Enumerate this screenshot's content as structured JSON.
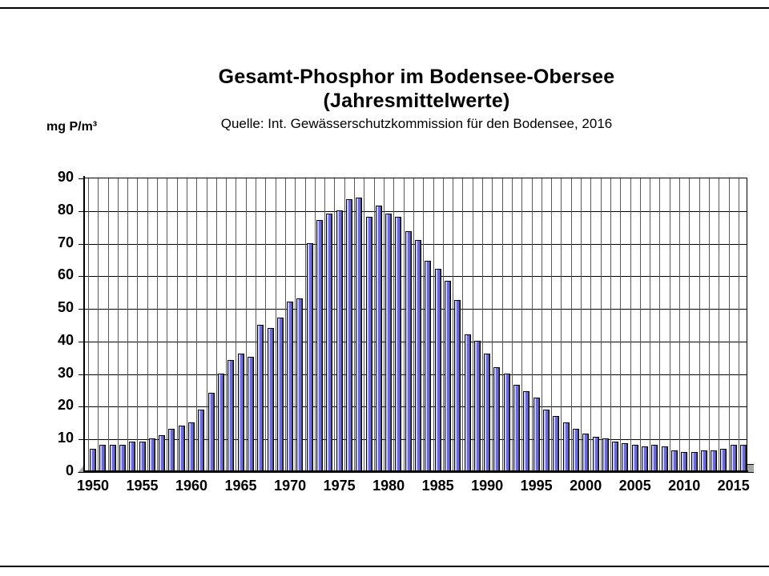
{
  "title": {
    "line1": "Gesamt-Phosphor im Bodensee-Obersee",
    "line2": "(Jahresmittelwerte)",
    "source": "Quelle: Int. Gewässerschutzkommission für den Bodensee, 2016"
  },
  "y_axis_unit": "mg P/m³",
  "colors": {
    "bar_fill": "#6b6bd6",
    "bar_highlight": "#e8e8ff",
    "bar_border": "#000000",
    "floor": "#a9a9a9",
    "grid": "#000000",
    "background": "#ffffff"
  },
  "chart_data": {
    "type": "bar",
    "title": "Gesamt-Phosphor im Bodensee-Obersee (Jahresmittelwerte)",
    "source": "Quelle: Int. Gewässerschutzkommission für den Bodensee, 2016",
    "ylabel": "mg P/m³",
    "xlabel": "",
    "ylim": [
      0,
      90
    ],
    "ytick_step": 10,
    "ytick_labels": [
      "0",
      "10",
      "20",
      "30",
      "40",
      "50",
      "60",
      "70",
      "80",
      "90"
    ],
    "xtick_labels": [
      "1950",
      "1955",
      "1960",
      "1965",
      "1970",
      "1975",
      "1980",
      "1985",
      "1990",
      "1995",
      "2000",
      "2005",
      "2010",
      "2015"
    ],
    "grid": true,
    "legend": "none",
    "year_start": 1950,
    "years": [
      1950,
      1951,
      1952,
      1953,
      1954,
      1955,
      1956,
      1957,
      1958,
      1959,
      1960,
      1961,
      1962,
      1963,
      1964,
      1965,
      1966,
      1967,
      1968,
      1969,
      1970,
      1971,
      1972,
      1973,
      1974,
      1975,
      1976,
      1977,
      1978,
      1979,
      1980,
      1981,
      1982,
      1983,
      1984,
      1985,
      1986,
      1987,
      1988,
      1989,
      1990,
      1991,
      1992,
      1993,
      1994,
      1995,
      1996,
      1997,
      1998,
      1999,
      2000,
      2001,
      2002,
      2003,
      2004,
      2005,
      2006,
      2007,
      2008,
      2009,
      2010,
      2011,
      2012,
      2013,
      2014,
      2015,
      2016
    ],
    "values": [
      7,
      8,
      8,
      8,
      9,
      9,
      10,
      11,
      13,
      14,
      15,
      19,
      24,
      30,
      34,
      36,
      35,
      45,
      44,
      47,
      52,
      53,
      70,
      77,
      79,
      80,
      83.5,
      84,
      78,
      81.5,
      79,
      78,
      73.5,
      71,
      64.5,
      62,
      58.5,
      52.5,
      42,
      40,
      36,
      32,
      30,
      26.5,
      24.5,
      22.5,
      19,
      17,
      15,
      13,
      11.5,
      10.5,
      10,
      9,
      8.5,
      8,
      7.5,
      8,
      7.5,
      6.5,
      6,
      6,
      6.5,
      6.5,
      7,
      8,
      8
    ]
  }
}
